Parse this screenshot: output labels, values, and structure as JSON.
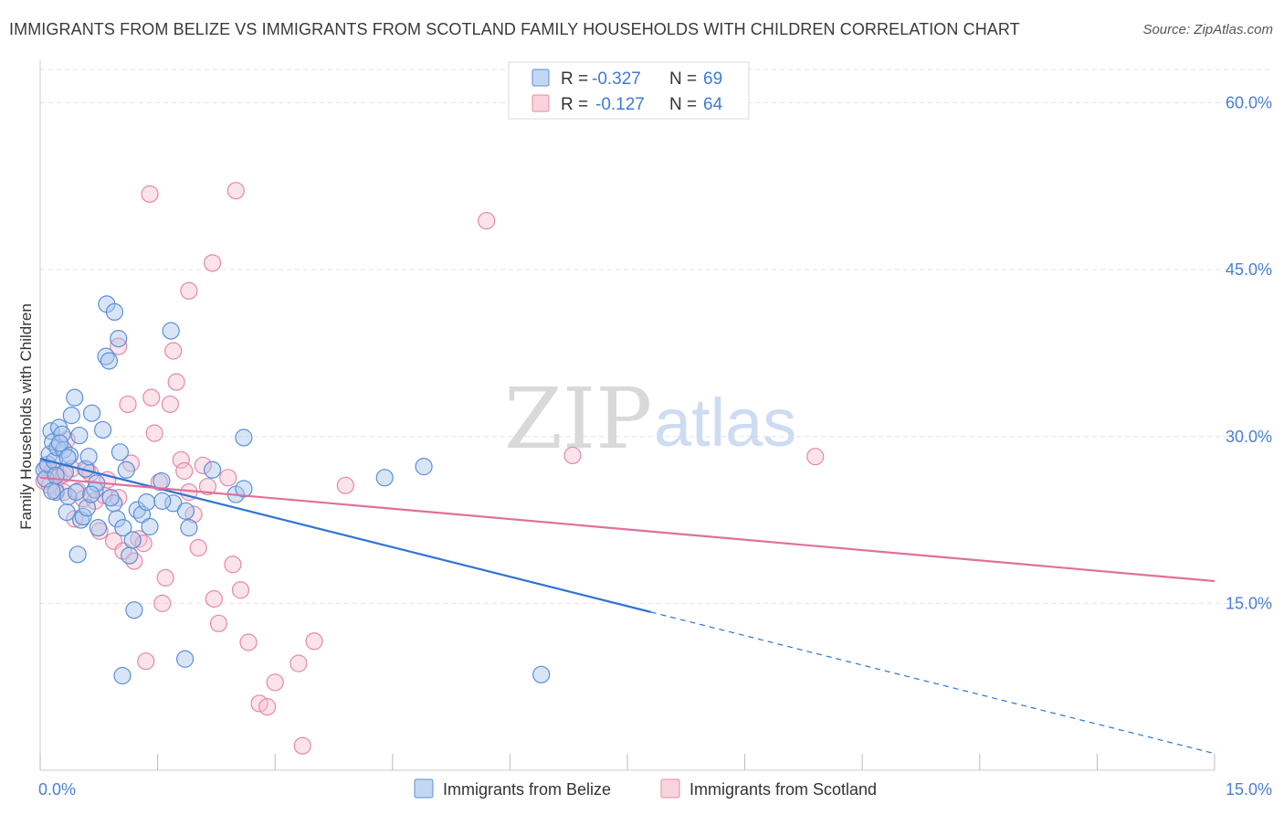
{
  "title": "IMMIGRANTS FROM BELIZE VS IMMIGRANTS FROM SCOTLAND FAMILY HOUSEHOLDS WITH CHILDREN CORRELATION CHART",
  "source": "Source: ZipAtlas.com",
  "watermark": {
    "zip": "ZIP",
    "atlas": "atlas"
  },
  "colors": {
    "belize_fill": "#a9c6ee",
    "belize_stroke": "#5b8fd9",
    "belize_line": "#2f74d4",
    "scotland_fill": "#f6c0d0",
    "scotland_stroke": "#e688a6",
    "scotland_line": "#e0709a",
    "grid": "#e3e3e3",
    "axis_text": "#4a7fd4"
  },
  "legend": {
    "rows": [
      {
        "series": "belize",
        "r_label": "R =",
        "r_value": "-0.327",
        "n_label": "N =",
        "n_value": "69"
      },
      {
        "series": "scotland",
        "r_label": "R =",
        "r_value": "-0.127",
        "n_label": "N =",
        "n_value": "64"
      }
    ]
  },
  "chart_data": {
    "type": "scatter",
    "title": "IMMIGRANTS FROM BELIZE VS IMMIGRANTS FROM SCOTLAND FAMILY HOUSEHOLDS WITH CHILDREN CORRELATION CHART",
    "xlabel": "",
    "ylabel": "Family Households with Children",
    "xlim": [
      0,
      15
    ],
    "ylim": [
      0,
      63
    ],
    "x_tick_labels": [
      "0.0%",
      "15.0%"
    ],
    "y_ticks": [
      15,
      30,
      45,
      60
    ],
    "y_tick_labels": [
      "15.0%",
      "30.0%",
      "45.0%",
      "60.0%"
    ],
    "series": [
      {
        "name": "Immigrants from Belize",
        "key": "belize",
        "points": [
          [
            0.05,
            27.0
          ],
          [
            0.07,
            26.2
          ],
          [
            0.1,
            27.5
          ],
          [
            0.12,
            28.4
          ],
          [
            0.14,
            30.5
          ],
          [
            0.16,
            29.5
          ],
          [
            0.18,
            27.8
          ],
          [
            0.2,
            25.0
          ],
          [
            0.22,
            29.0
          ],
          [
            0.24,
            30.8
          ],
          [
            0.28,
            30.2
          ],
          [
            0.3,
            28.8
          ],
          [
            0.32,
            26.8
          ],
          [
            0.34,
            23.2
          ],
          [
            0.36,
            24.6
          ],
          [
            0.38,
            28.3
          ],
          [
            0.4,
            31.9
          ],
          [
            0.44,
            33.5
          ],
          [
            0.46,
            25.0
          ],
          [
            0.5,
            30.1
          ],
          [
            0.52,
            22.5
          ],
          [
            0.55,
            22.8
          ],
          [
            0.58,
            27.1
          ],
          [
            0.6,
            23.6
          ],
          [
            0.62,
            28.2
          ],
          [
            0.66,
            32.1
          ],
          [
            0.7,
            25.2
          ],
          [
            0.72,
            25.8
          ],
          [
            0.74,
            21.8
          ],
          [
            0.8,
            30.6
          ],
          [
            0.84,
            37.2
          ],
          [
            0.88,
            36.8
          ],
          [
            0.94,
            24.0
          ],
          [
            0.98,
            22.6
          ],
          [
            1.02,
            28.6
          ],
          [
            1.06,
            21.8
          ],
          [
            1.1,
            27.0
          ],
          [
            1.14,
            19.3
          ],
          [
            1.18,
            20.7
          ],
          [
            1.24,
            23.4
          ],
          [
            1.3,
            23.0
          ],
          [
            1.36,
            24.1
          ],
          [
            0.85,
            41.9
          ],
          [
            0.95,
            41.2
          ],
          [
            1.0,
            38.8
          ],
          [
            1.67,
            39.5
          ],
          [
            1.7,
            24.0
          ],
          [
            1.9,
            21.8
          ],
          [
            2.2,
            27.0
          ],
          [
            2.5,
            24.8
          ],
          [
            2.6,
            25.3
          ],
          [
            2.6,
            29.9
          ],
          [
            1.85,
            10.0
          ],
          [
            1.2,
            14.4
          ],
          [
            1.05,
            8.5
          ],
          [
            0.48,
            19.4
          ],
          [
            1.55,
            26.0
          ],
          [
            1.56,
            24.2
          ],
          [
            1.4,
            21.9
          ],
          [
            0.35,
            28.1
          ],
          [
            0.2,
            26.5
          ],
          [
            0.65,
            24.8
          ],
          [
            0.9,
            24.5
          ],
          [
            1.86,
            23.3
          ],
          [
            4.4,
            26.3
          ],
          [
            4.9,
            27.3
          ],
          [
            6.4,
            8.6
          ],
          [
            0.15,
            25.1
          ],
          [
            0.25,
            29.4
          ]
        ]
      },
      {
        "name": "Immigrants from Scotland",
        "key": "scotland",
        "points": [
          [
            0.05,
            26.0
          ],
          [
            0.08,
            27.2
          ],
          [
            0.12,
            25.6
          ],
          [
            0.16,
            27.0
          ],
          [
            0.2,
            25.2
          ],
          [
            0.24,
            26.4
          ],
          [
            0.3,
            26.6
          ],
          [
            0.34,
            29.7
          ],
          [
            0.4,
            27.1
          ],
          [
            0.44,
            22.6
          ],
          [
            0.48,
            25.1
          ],
          [
            0.55,
            24.4
          ],
          [
            0.6,
            27.0
          ],
          [
            0.64,
            26.7
          ],
          [
            0.7,
            24.2
          ],
          [
            0.76,
            21.5
          ],
          [
            0.82,
            24.7
          ],
          [
            0.86,
            26.1
          ],
          [
            0.94,
            20.6
          ],
          [
            1.0,
            24.5
          ],
          [
            1.06,
            19.7
          ],
          [
            1.12,
            32.9
          ],
          [
            1.16,
            27.6
          ],
          [
            1.2,
            18.8
          ],
          [
            1.26,
            20.8
          ],
          [
            1.32,
            20.4
          ],
          [
            1.42,
            33.5
          ],
          [
            1.46,
            30.3
          ],
          [
            1.52,
            25.9
          ],
          [
            1.56,
            15.0
          ],
          [
            1.6,
            17.3
          ],
          [
            1.66,
            32.9
          ],
          [
            1.7,
            37.7
          ],
          [
            1.74,
            34.9
          ],
          [
            1.8,
            27.9
          ],
          [
            1.84,
            26.9
          ],
          [
            1.9,
            25.0
          ],
          [
            1.96,
            23.0
          ],
          [
            2.02,
            20.0
          ],
          [
            2.08,
            27.4
          ],
          [
            2.14,
            25.5
          ],
          [
            2.22,
            15.4
          ],
          [
            2.28,
            13.2
          ],
          [
            2.4,
            26.3
          ],
          [
            2.46,
            18.5
          ],
          [
            2.56,
            16.2
          ],
          [
            2.66,
            11.5
          ],
          [
            2.8,
            6.0
          ],
          [
            2.9,
            5.7
          ],
          [
            3.3,
            9.6
          ],
          [
            3.5,
            11.6
          ],
          [
            1.4,
            51.8
          ],
          [
            2.5,
            52.1
          ],
          [
            5.7,
            49.4
          ],
          [
            2.2,
            45.6
          ],
          [
            1.9,
            43.1
          ],
          [
            1.0,
            38.1
          ],
          [
            1.35,
            9.8
          ],
          [
            3.0,
            7.9
          ],
          [
            3.35,
            2.2
          ],
          [
            3.9,
            25.6
          ],
          [
            6.8,
            28.3
          ],
          [
            9.9,
            28.2
          ],
          [
            0.3,
            25.0
          ]
        ]
      }
    ],
    "trend_lines": [
      {
        "series": "belize",
        "x_start": 0.0,
        "y_start": 28.0,
        "x_solid_end": 7.8,
        "x_end": 15.0,
        "y_end": 1.5,
        "dashed_after_solid": true
      },
      {
        "series": "scotland",
        "x_start": 0.0,
        "y_start": 26.3,
        "x_end": 15.0,
        "y_end": 17.0,
        "dashed_after_solid": false
      }
    ]
  },
  "bottom_legend": [
    {
      "series": "belize",
      "label": "Immigrants from Belize"
    },
    {
      "series": "scotland",
      "label": "Immigrants from Scotland"
    }
  ]
}
